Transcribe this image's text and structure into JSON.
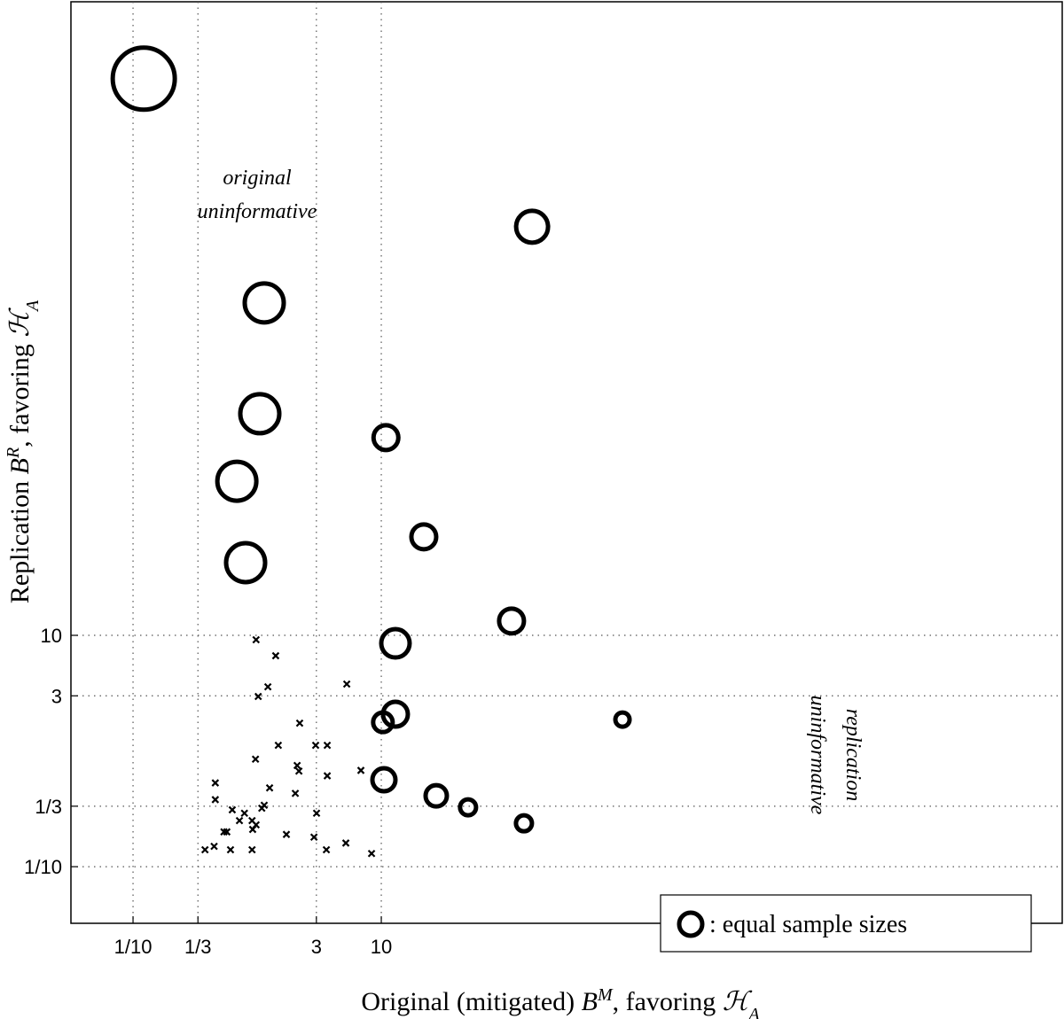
{
  "chart_data": {
    "type": "scatter",
    "xlabel": [
      "Original (mitigated) ",
      "B",
      "M",
      ", favoring ",
      "ℋ",
      "A"
    ],
    "ylabel": [
      "Replication ",
      "B",
      "R",
      ", favoring ",
      "ℋ",
      "A"
    ],
    "xscale": "log",
    "yscale": "log",
    "xlim": [
      0.0316,
      3060000
    ],
    "ylim": [
      0.0324,
      3000000
    ],
    "xticks": [
      {
        "value": 0.1,
        "label": "1/10"
      },
      {
        "value": 0.3333,
        "label": "1/3"
      },
      3,
      10
    ],
    "yticks": [
      {
        "value": 0.1,
        "label": "1/10"
      },
      {
        "value": 0.3333,
        "label": "1/3"
      },
      3,
      10
    ],
    "grid": true,
    "legend": "lower right",
    "annotations": [
      {
        "lines": [
          "original",
          "uninformative"
        ]
      },
      {
        "lines": [
          "replication",
          "uninformative"
        ],
        "rotated": true
      }
    ],
    "series": [
      {
        "name": ": equal sample sizes",
        "marker": "circle",
        "color": "#000000",
        "x": [
          0.122,
          164,
          1.14,
          1.05,
          10.9,
          0.686,
          22,
          0.807,
          112,
          13,
          13,
          10.3,
          877,
          10.5,
          27.7,
          50,
          141
        ],
        "values": [
          649000,
          34100,
          7480,
          824,
          512,
          215,
          71,
          42.5,
          13.3,
          8.53,
          2.08,
          1.77,
          1.87,
          0.564,
          0.41,
          0.326,
          0.237
        ],
        "sizes": [
          35,
          18,
          22,
          22,
          14,
          22,
          14,
          22,
          14,
          16,
          14,
          11,
          8,
          13,
          12,
          9,
          9
        ]
      },
      {
        "marker": "x",
        "color": "#000000",
        "x": [
          0.98,
          1.41,
          1.22,
          1.02,
          5.27,
          2.2,
          1.48,
          2.96,
          3.67,
          0.97,
          2.1,
          2.17,
          3.67,
          6.85,
          0.46,
          1.26,
          2.03,
          0.46,
          0.63,
          1.14,
          1.09,
          0.79,
          3.01,
          0.72,
          0.91,
          0.98,
          0.92,
          0.54,
          0.57,
          1.72,
          2.87,
          5.18,
          0.38,
          0.45,
          0.61,
          0.91,
          3.61,
          8.35
        ],
        "values": [
          9.16,
          6.66,
          3.59,
          2.96,
          3.79,
          1.74,
          1.12,
          1.12,
          1.12,
          0.85,
          0.75,
          0.67,
          0.61,
          0.68,
          0.53,
          0.48,
          0.43,
          0.38,
          0.31,
          0.34,
          0.32,
          0.29,
          0.29,
          0.25,
          0.25,
          0.23,
          0.21,
          0.2,
          0.2,
          0.19,
          0.18,
          0.16,
          0.14,
          0.15,
          0.14,
          0.14,
          0.14,
          0.13
        ]
      }
    ]
  }
}
